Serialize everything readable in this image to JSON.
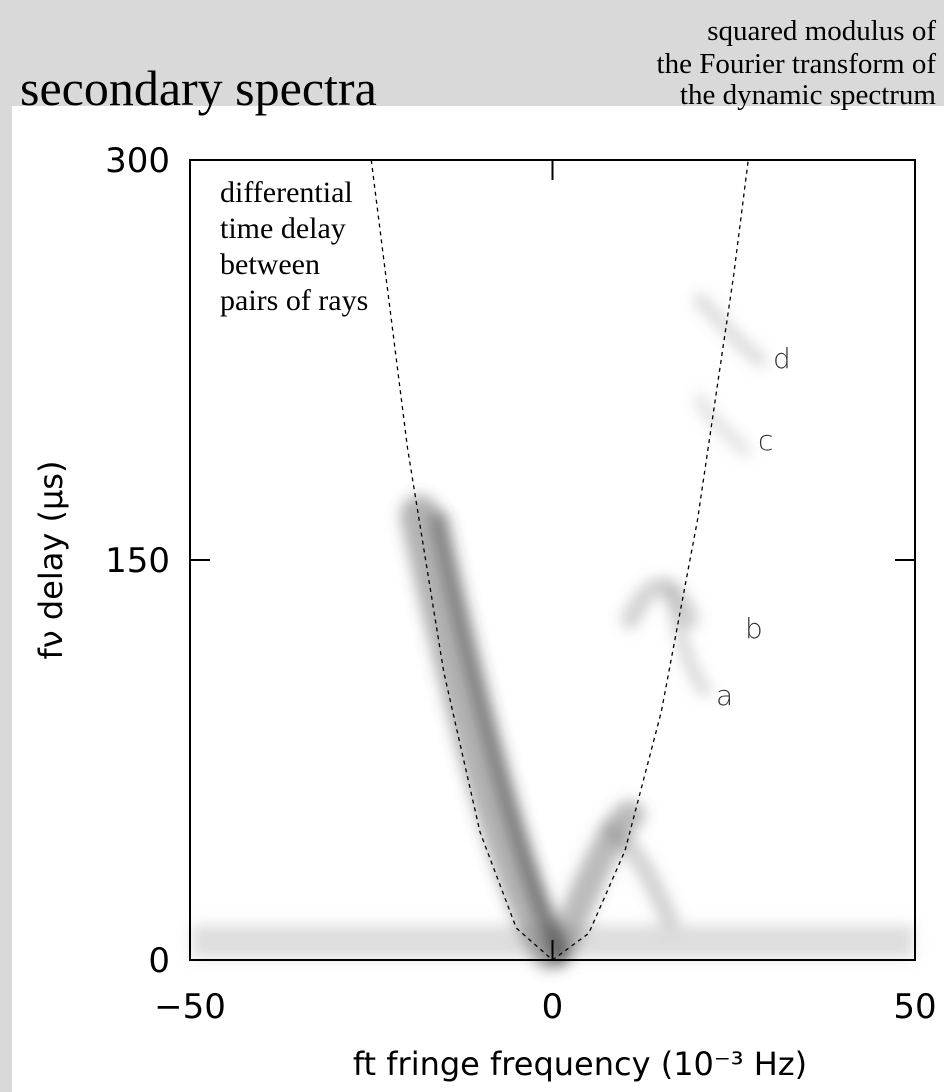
{
  "chart_data": {
    "type": "line",
    "title": "secondary spectra",
    "subtitle": [
      "squared modulus of",
      "the Fourier transform of",
      "the dynamic spectrum"
    ],
    "xlabel": "ft  fringe frequency (10⁻³ Hz)",
    "ylabel": "fν  delay (μs)",
    "annotation": [
      "differential",
      "time delay",
      "between",
      "pairs of rays"
    ],
    "arc_labels": [
      "a",
      "b",
      "c",
      "d"
    ],
    "xlim": [
      -50,
      50
    ],
    "ylim": [
      0,
      300
    ],
    "xticks": [
      {
        "value": -50,
        "label": "−50"
      },
      0,
      50
    ],
    "yticks": [
      0,
      150,
      300
    ],
    "series": [
      {
        "color": "#000000",
        "x": [
          -25,
          -20,
          -15,
          -10,
          -5,
          0,
          5,
          10,
          15,
          20,
          25,
          27
        ],
        "values": [
          300,
          192,
          108,
          48,
          12,
          0,
          10,
          41,
          93,
          165,
          257,
          300
        ]
      }
    ]
  }
}
